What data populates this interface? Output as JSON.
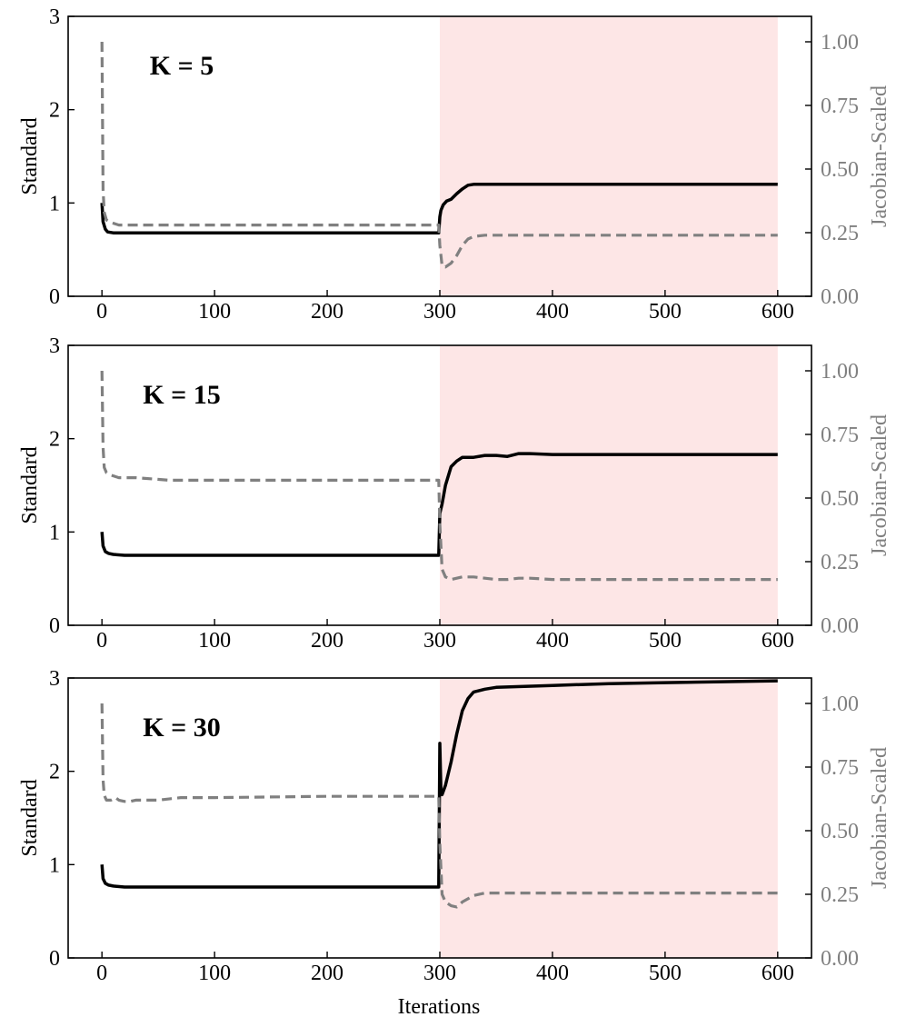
{
  "figure": {
    "xlabel": "Iterations"
  },
  "colors": {
    "standard": "#000000",
    "jacobian": "#808080",
    "shade": "#fde6e6"
  },
  "chart_data": [
    {
      "type": "line",
      "title": "K = 5",
      "xlabel": "",
      "ylabel": "Standard",
      "ylabel_right": "Jacobian-Scaled",
      "xlim": [
        -30,
        630
      ],
      "ylim": [
        0,
        3
      ],
      "ylim_right": [
        0,
        1.1
      ],
      "xticks": [
        0,
        100,
        200,
        300,
        400,
        500,
        600
      ],
      "yticks": [
        0,
        1,
        2,
        3
      ],
      "yticks_right": [
        "0.00",
        "0.25",
        "0.50",
        "0.75",
        "1.00"
      ],
      "shaded_region": [
        300,
        600
      ],
      "legend": "none",
      "grid": false,
      "series": [
        {
          "axis": "left",
          "style": "solid",
          "x": [
            0,
            1,
            3,
            5,
            10,
            50,
            100,
            200,
            299,
            300,
            301,
            303,
            306,
            310,
            315,
            320,
            325,
            330,
            340,
            400,
            500,
            600
          ],
          "y": [
            1.0,
            0.8,
            0.72,
            0.69,
            0.68,
            0.68,
            0.68,
            0.68,
            0.68,
            0.85,
            0.92,
            0.98,
            1.02,
            1.04,
            1.1,
            1.15,
            1.19,
            1.2,
            1.2,
            1.2,
            1.2,
            1.2
          ]
        },
        {
          "axis": "right",
          "style": "dashed",
          "x": [
            0,
            1,
            2,
            4,
            8,
            15,
            50,
            100,
            200,
            299,
            300,
            302,
            305,
            310,
            315,
            320,
            325,
            330,
            340,
            400,
            500,
            600
          ],
          "y": [
            1.0,
            0.42,
            0.33,
            0.3,
            0.29,
            0.28,
            0.28,
            0.28,
            0.28,
            0.28,
            0.2,
            0.12,
            0.115,
            0.13,
            0.16,
            0.2,
            0.225,
            0.235,
            0.24,
            0.24,
            0.24,
            0.24
          ]
        }
      ]
    },
    {
      "type": "line",
      "title": "K = 15",
      "xlabel": "",
      "ylabel": "Standard",
      "ylabel_right": "Jacobian-Scaled",
      "xlim": [
        -30,
        630
      ],
      "ylim": [
        0,
        3
      ],
      "ylim_right": [
        0,
        1.1
      ],
      "xticks": [
        0,
        100,
        200,
        300,
        400,
        500,
        600
      ],
      "yticks": [
        0,
        1,
        2,
        3
      ],
      "yticks_right": [
        "0.00",
        "0.25",
        "0.50",
        "0.75",
        "1.00"
      ],
      "shaded_region": [
        300,
        600
      ],
      "legend": "none",
      "grid": false,
      "series": [
        {
          "axis": "left",
          "style": "solid",
          "x": [
            0,
            1,
            3,
            6,
            10,
            20,
            50,
            100,
            200,
            299,
            300,
            302,
            305,
            310,
            315,
            320,
            330,
            340,
            350,
            360,
            370,
            380,
            400,
            450,
            500,
            600
          ],
          "y": [
            1.0,
            0.85,
            0.79,
            0.77,
            0.76,
            0.75,
            0.75,
            0.75,
            0.75,
            0.75,
            1.2,
            1.3,
            1.5,
            1.7,
            1.76,
            1.8,
            1.8,
            1.82,
            1.82,
            1.81,
            1.84,
            1.84,
            1.83,
            1.83,
            1.83,
            1.83
          ]
        },
        {
          "axis": "right",
          "style": "dashed",
          "x": [
            0,
            1,
            2,
            4,
            8,
            15,
            30,
            60,
            100,
            200,
            299,
            300,
            302,
            305,
            310,
            320,
            330,
            340,
            350,
            360,
            370,
            380,
            400,
            500,
            600
          ],
          "y": [
            1.0,
            0.7,
            0.62,
            0.6,
            0.59,
            0.58,
            0.58,
            0.57,
            0.57,
            0.57,
            0.57,
            0.4,
            0.22,
            0.19,
            0.18,
            0.19,
            0.19,
            0.185,
            0.18,
            0.18,
            0.185,
            0.185,
            0.18,
            0.18,
            0.18
          ]
        }
      ]
    },
    {
      "type": "line",
      "title": "K = 30",
      "xlabel": "Iterations",
      "ylabel": "Standard",
      "ylabel_right": "Jacobian-Scaled",
      "xlim": [
        -30,
        630
      ],
      "ylim": [
        0,
        3
      ],
      "ylim_right": [
        0,
        1.1
      ],
      "xticks": [
        0,
        100,
        200,
        300,
        400,
        500,
        600
      ],
      "yticks": [
        0,
        1,
        2,
        3
      ],
      "yticks_right": [
        "0.00",
        "0.25",
        "0.50",
        "0.75",
        "1.00"
      ],
      "shaded_region": [
        300,
        600
      ],
      "legend": "none",
      "grid": false,
      "series": [
        {
          "axis": "left",
          "style": "solid",
          "x": [
            0,
            1,
            3,
            6,
            10,
            20,
            50,
            100,
            200,
            299,
            300,
            301,
            302,
            305,
            310,
            315,
            320,
            325,
            330,
            340,
            350,
            400,
            450,
            500,
            550,
            600
          ],
          "y": [
            1.0,
            0.85,
            0.8,
            0.78,
            0.77,
            0.76,
            0.76,
            0.76,
            0.76,
            0.76,
            2.3,
            1.8,
            1.75,
            1.85,
            2.1,
            2.4,
            2.65,
            2.78,
            2.85,
            2.88,
            2.9,
            2.92,
            2.94,
            2.95,
            2.96,
            2.97
          ]
        },
        {
          "axis": "right",
          "style": "dashed",
          "x": [
            0,
            1,
            2,
            4,
            8,
            12,
            15,
            20,
            25,
            30,
            50,
            70,
            100,
            200,
            299,
            300,
            302,
            305,
            310,
            315,
            320,
            330,
            340,
            400,
            500,
            600
          ],
          "y": [
            1.0,
            0.7,
            0.64,
            0.62,
            0.62,
            0.63,
            0.62,
            0.615,
            0.615,
            0.62,
            0.62,
            0.63,
            0.63,
            0.635,
            0.635,
            0.45,
            0.25,
            0.22,
            0.205,
            0.2,
            0.22,
            0.245,
            0.255,
            0.255,
            0.255,
            0.255
          ]
        }
      ]
    }
  ]
}
